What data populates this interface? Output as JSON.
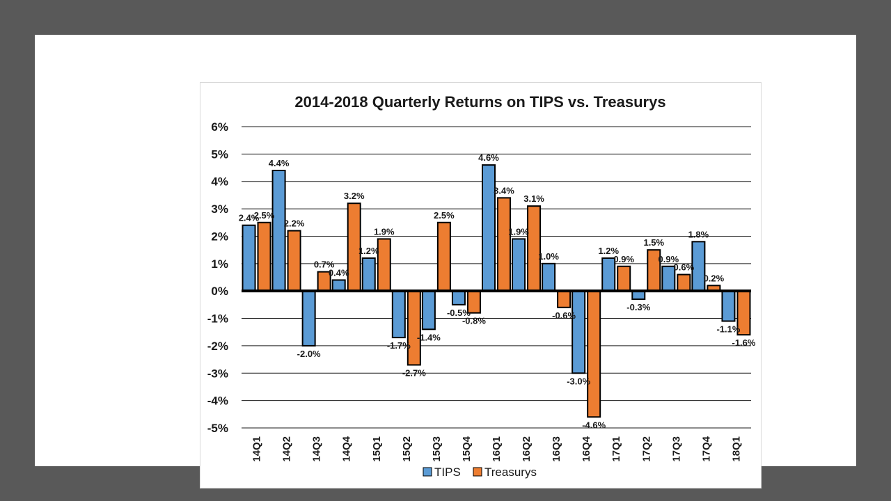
{
  "chart_data": {
    "type": "bar",
    "title": "2014-2018 Quarterly Returns on TIPS vs. Treasurys",
    "categories": [
      "14Q1",
      "14Q2",
      "14Q3",
      "14Q4",
      "15Q1",
      "15Q2",
      "15Q3",
      "15Q4",
      "16Q1",
      "16Q2",
      "16Q3",
      "16Q4",
      "17Q1",
      "17Q2",
      "17Q3",
      "17Q4",
      "18Q1"
    ],
    "series": [
      {
        "name": "TIPS",
        "color": "#5b9bd5",
        "values": [
          2.4,
          4.4,
          -2.0,
          0.4,
          1.2,
          -1.7,
          -1.4,
          -0.5,
          4.6,
          1.9,
          1.0,
          -3.0,
          1.2,
          -0.3,
          0.9,
          1.8,
          -1.1
        ],
        "labels": [
          "2.4%",
          "4.4%",
          "-2.0%",
          "0.4%",
          "1.2%",
          "-1.7%",
          "-1.4%",
          "-0.5%",
          "4.6%",
          "1.9%",
          "1.0%",
          "-3.0%",
          "1.2%",
          "-0.3%",
          "0.9%",
          "1.8%",
          "-1.1%"
        ]
      },
      {
        "name": "Treasurys",
        "color": "#ed7d31",
        "values": [
          2.5,
          2.2,
          0.7,
          3.2,
          1.9,
          -2.7,
          2.5,
          -0.8,
          3.4,
          3.1,
          -0.6,
          -4.6,
          0.9,
          1.5,
          0.6,
          0.2,
          -1.6
        ],
        "labels": [
          "2.5%",
          "2.2%",
          "0.7%",
          "3.2%",
          "1.9%",
          "-2.7%",
          "2.5%",
          "-0.8%",
          "3.4%",
          "3.1%",
          "-0.6%",
          "-4.6%",
          "0.9%",
          "1.5%",
          "0.6%",
          "0.2%",
          "-1.6%"
        ]
      }
    ],
    "ylim": [
      -5,
      6
    ],
    "yticks": [
      6,
      5,
      4,
      3,
      2,
      1,
      0,
      -1,
      -2,
      -3,
      -4,
      -5
    ],
    "ytick_labels": [
      "6%",
      "5%",
      "4%",
      "3%",
      "2%",
      "1%",
      "0%",
      "-1%",
      "-2%",
      "-3%",
      "-4%",
      "-5%"
    ],
    "xlabel": "",
    "ylabel": "",
    "grid": true,
    "legend": "bottom-center",
    "legend_entries": [
      "TIPS",
      "Treasurys"
    ]
  }
}
